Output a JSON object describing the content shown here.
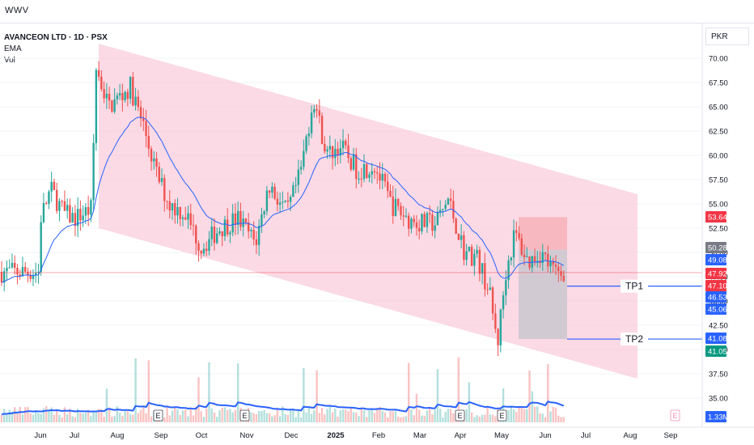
{
  "app": {
    "brand": "WWV"
  },
  "legend": {
    "symbol": "AVANCEON LTD · 1D · PSX",
    "indicator_1": "EMA",
    "indicator_2": "Vol"
  },
  "currency": "PKR",
  "colors": {
    "up": "#26a69a",
    "down": "#ef5350",
    "ema": "#2962ff",
    "channel": "#f8bbd0",
    "stop_zone": "#f7a1a6",
    "target_zone": "#b0bec5",
    "tp_line": "#2962ff"
  },
  "annotations": {
    "tp1": "TP1",
    "tp2": "TP2",
    "earnings_marker": "E"
  },
  "price_badges": [
    {
      "value": "53.64",
      "color": "#f23645"
    },
    {
      "value": "50.28",
      "color": "#787b86"
    },
    {
      "value": "49.08",
      "color": "#2962ff"
    },
    {
      "value": "47.92",
      "color": "#f23645"
    },
    {
      "value": "47.10",
      "color": "#f23645"
    },
    {
      "value": "46.53",
      "color": "#2962ff"
    },
    {
      "value": "45.06",
      "color": "#2962ff"
    },
    {
      "value": "41.08",
      "color": "#2962ff"
    },
    {
      "value": "41.05",
      "color": "#089981"
    },
    {
      "value": "1.33M",
      "color": "#2962ff"
    }
  ],
  "chart_data": {
    "type": "candlestick",
    "title": "AVANCEON LTD · 1D · PSX",
    "y_axis": {
      "min": 35,
      "max": 72.5,
      "unit": "PKR",
      "ticks": [
        "70.00",
        "67.50",
        "65.00",
        "62.50",
        "60.00",
        "57.50",
        "55.00",
        "52.50",
        "50.00",
        "47.50",
        "45.00",
        "42.50",
        "40.00",
        "37.50",
        "35.00"
      ]
    },
    "x_axis": {
      "ticks": [
        "Jun",
        "Jul",
        "Aug",
        "Sep",
        "Oct",
        "Nov",
        "Dec",
        "2025",
        "Feb",
        "Mar",
        "Apr",
        "May",
        "Jun",
        "Jul",
        "Aug",
        "Sep"
      ]
    },
    "approx_monthly_closes": [
      {
        "month": "Jun",
        "close": 53.5
      },
      {
        "month": "Jul",
        "close": 53.5
      },
      {
        "month": "Aug",
        "close": 63.0
      },
      {
        "month": "Sep",
        "close": 55.0
      },
      {
        "month": "Oct",
        "close": 51.5
      },
      {
        "month": "Nov",
        "close": 54.0
      },
      {
        "month": "Dec",
        "close": 60.0
      },
      {
        "month": "2025",
        "close": 58.0
      },
      {
        "month": "Feb",
        "close": 54.5
      },
      {
        "month": "Mar",
        "close": 53.5
      },
      {
        "month": "Apr",
        "close": 48.0
      },
      {
        "month": "May",
        "close": 49.0
      },
      {
        "month": "Jun",
        "close": 47.92
      }
    ],
    "channel": {
      "upper_start": 71.5,
      "upper_end": 56.0,
      "lower_start": 52.5,
      "lower_end": 37.0,
      "start_month": "Jul",
      "end_month": "Aug"
    },
    "trade_setup": {
      "stop": 53.64,
      "entry": 50.28,
      "tp1": 46.53,
      "tp2": 41.08
    },
    "last_price": 47.92,
    "ema_last": 49.08,
    "volume_last": "1.33M"
  }
}
